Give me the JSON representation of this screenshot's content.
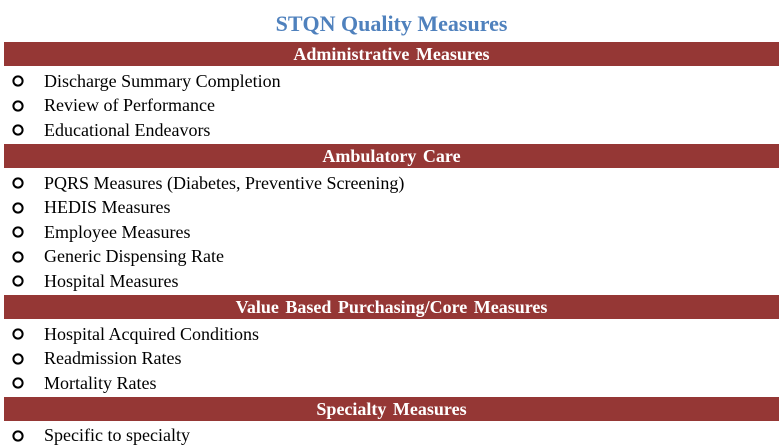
{
  "page": {
    "title": "STQN Quality Measures"
  },
  "colors": {
    "title": "#4f81bd",
    "section_header_bg": "#953735",
    "section_header_text": "#ffffff",
    "bullet": "#000000"
  },
  "icons": {
    "bullet": "circle-bullet-icon"
  },
  "sections": [
    {
      "header": "Administrative  Measures",
      "items": [
        "Discharge Summary Completion",
        "Review of Performance",
        "Educational Endeavors"
      ]
    },
    {
      "header": "Ambulatory  Care",
      "items": [
        "PQRS Measures (Diabetes, Preventive Screening)",
        "HEDIS  Measures",
        "Employee Measures",
        "Generic Dispensing Rate",
        "Hospital Measures"
      ]
    },
    {
      "header": "Value Based Purchasing/Core  Measures",
      "items": [
        "Hospital Acquired Conditions",
        "Readmission Rates",
        "Mortality Rates"
      ]
    },
    {
      "header": "Specialty Measures",
      "items": [
        "Specific to specialty"
      ]
    }
  ]
}
